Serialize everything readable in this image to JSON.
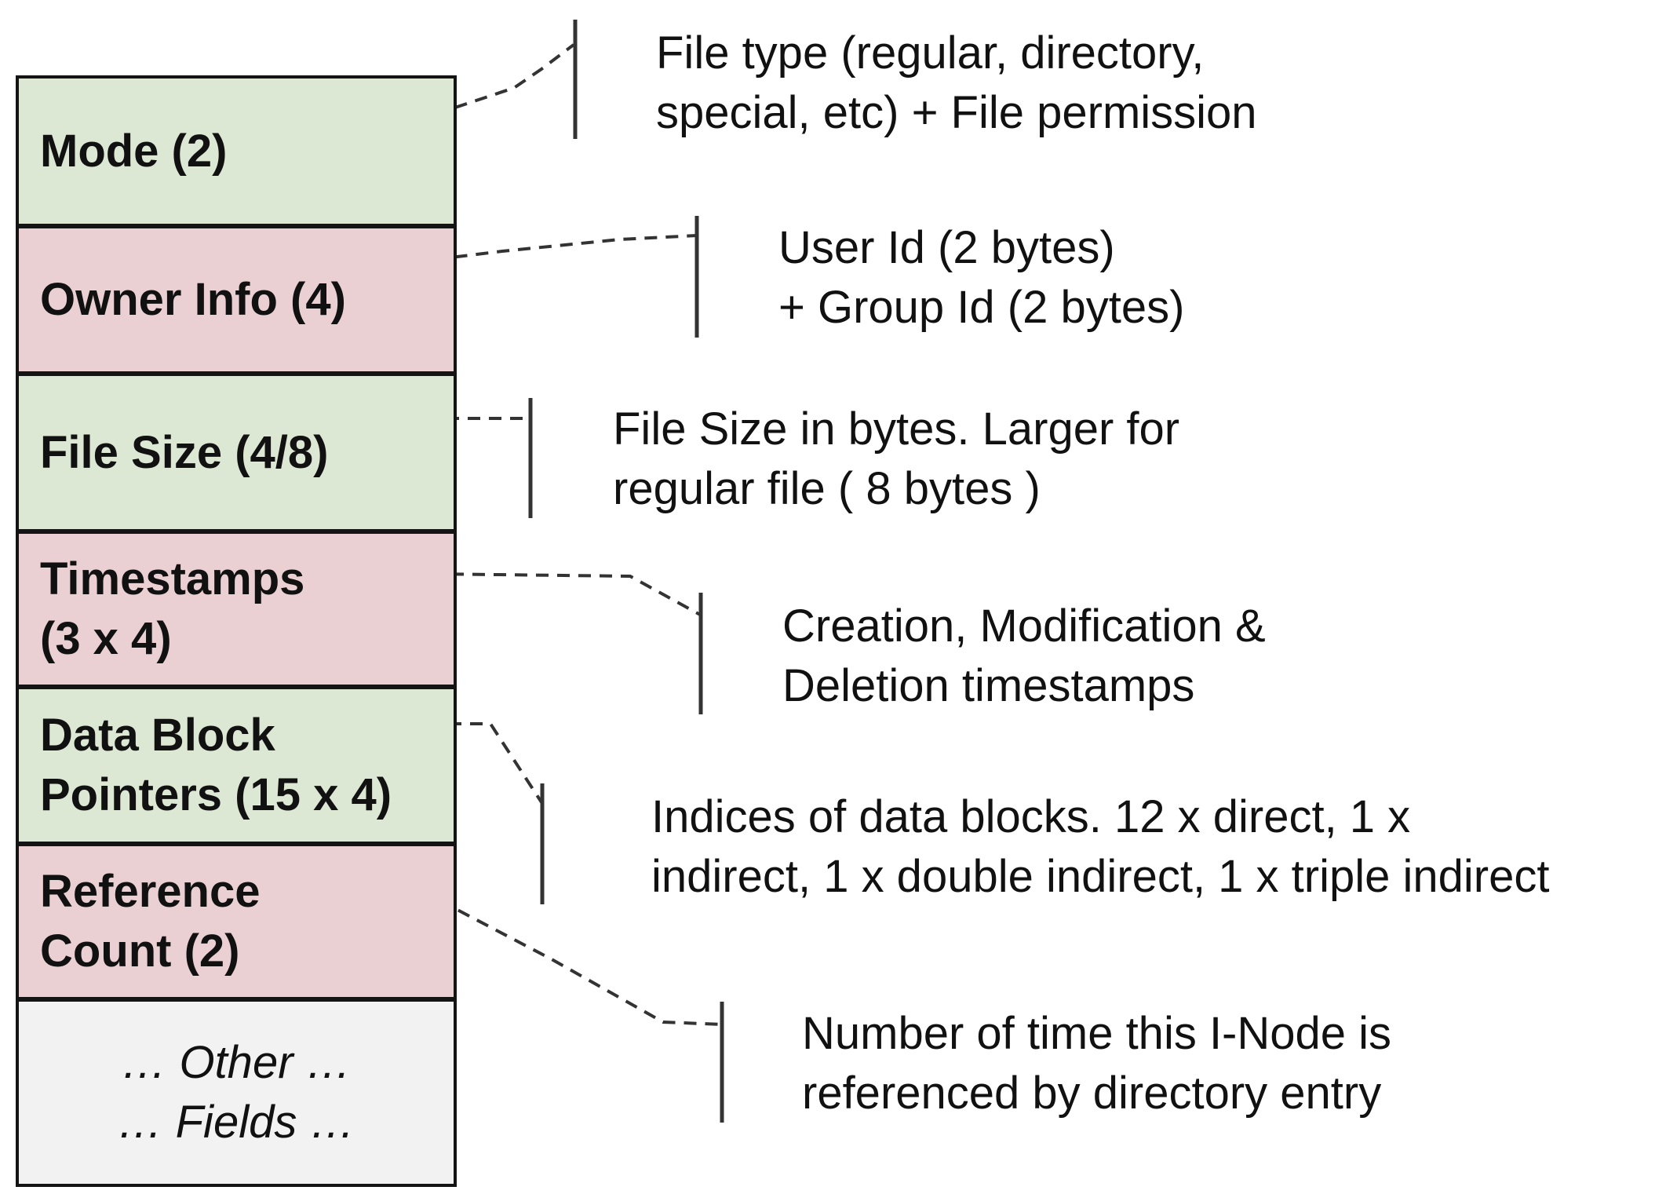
{
  "colors": {
    "green_fill": "#dce8d4",
    "red_fill": "#eacfd3",
    "grey_fill": "#f2f2f2",
    "border": "#141414",
    "connector": "#333333"
  },
  "fields": [
    {
      "id": "mode",
      "lines": [
        "Mode (2)"
      ],
      "color": "green_fill"
    },
    {
      "id": "owner-info",
      "lines": [
        "Owner Info (4)"
      ],
      "color": "red_fill"
    },
    {
      "id": "file-size",
      "lines": [
        "File Size (4/8)"
      ],
      "color": "green_fill"
    },
    {
      "id": "timestamps",
      "lines": [
        "Timestamps",
        "(3 x 4)"
      ],
      "color": "red_fill"
    },
    {
      "id": "data-block-pointers",
      "lines": [
        "Data Block",
        "Pointers (15 x 4)"
      ],
      "color": "green_fill"
    },
    {
      "id": "reference-count",
      "lines": [
        "Reference",
        "Count (2)"
      ],
      "color": "red_fill"
    },
    {
      "id": "other-fields",
      "lines": [
        "… Other …",
        "… Fields …"
      ],
      "color": "grey_fill"
    }
  ],
  "descriptions": [
    {
      "id": "mode",
      "lines": [
        "File type (regular, directory,",
        "special, etc) + File permission"
      ]
    },
    {
      "id": "owner-info",
      "lines": [
        "User Id (2 bytes)",
        "+ Group Id (2 bytes)"
      ]
    },
    {
      "id": "file-size",
      "lines": [
        "File Size in bytes. Larger for",
        "regular file ( 8 bytes )"
      ]
    },
    {
      "id": "timestamps",
      "lines": [
        "Creation, Modification &",
        "Deletion timestamps"
      ]
    },
    {
      "id": "data-block-pointers",
      "lines": [
        "Indices of data blocks. 12 x direct, 1 x",
        "indirect, 1 x double indirect, 1 x triple indirect"
      ]
    },
    {
      "id": "reference-count",
      "lines": [
        "Number of time this I-Node is",
        "referenced by directory entry"
      ]
    }
  ]
}
